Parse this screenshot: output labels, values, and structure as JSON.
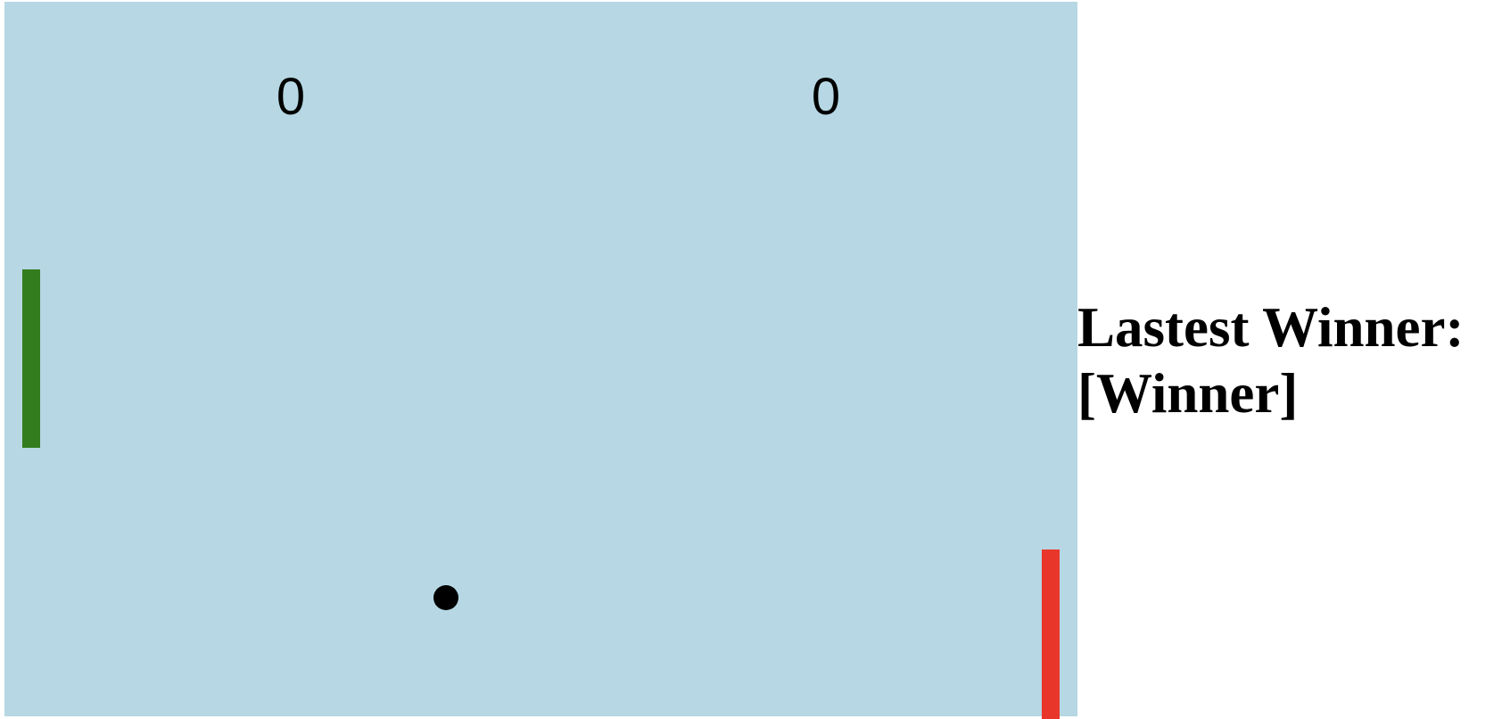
{
  "game": {
    "scores": {
      "left": "0",
      "right": "0"
    },
    "colors": {
      "field": "#b6d7e3",
      "left_paddle": "#347d1e",
      "right_paddle": "#e8362a",
      "ball": "#000000"
    }
  },
  "sidebar": {
    "winner_label": "Lastest Winner:",
    "winner_value": "[Winner]"
  }
}
